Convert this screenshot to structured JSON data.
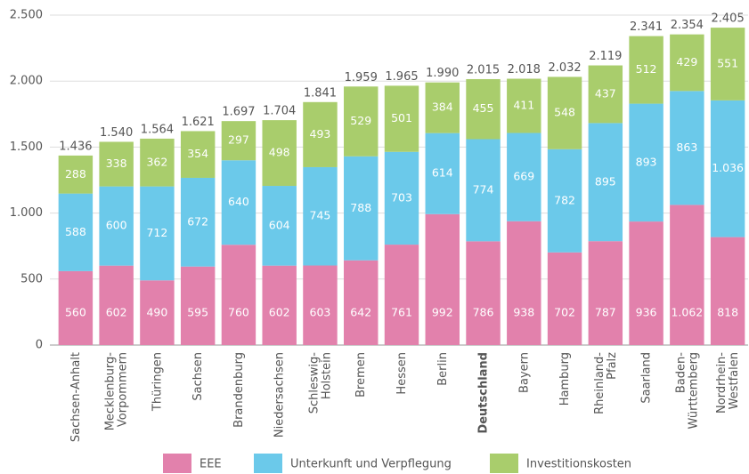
{
  "chart_data": {
    "type": "stacked_bar",
    "categories": [
      "Sachsen-Anhalt",
      "Mecklenburg-\nVorpommern",
      "Thüringen",
      "Sachsen",
      "Brandenburg",
      "Niedersachsen",
      "Schleswig-\nHolstein",
      "Bremen",
      "Hessen",
      "Berlin",
      "Deutschland",
      "Bayern",
      "Hamburg",
      "Rheinland-\nPfalz",
      "Saarland",
      "Baden-\nWürttemberg",
      "Nordrhein-\nWestfalen"
    ],
    "highlight": "Deutschland",
    "series": [
      {
        "name": "EEE",
        "color": "#e281ac",
        "values": [
          560,
          602,
          490,
          595,
          760,
          602,
          603,
          642,
          761,
          992,
          786,
          938,
          702,
          787,
          936,
          1062,
          818
        ],
        "value_labels": [
          "560",
          "602",
          "490",
          "595",
          "760",
          "602",
          "603",
          "642",
          "761",
          "992",
          "786",
          "938",
          "702",
          "787",
          "936",
          "1.062",
          "818"
        ]
      },
      {
        "name": "Unterkunft und Verpflegung",
        "color": "#6bc9ea",
        "values": [
          588,
          600,
          712,
          672,
          640,
          604,
          745,
          788,
          703,
          614,
          774,
          669,
          782,
          895,
          893,
          863,
          1036
        ],
        "value_labels": [
          "588",
          "600",
          "712",
          "672",
          "640",
          "604",
          "745",
          "788",
          "703",
          "614",
          "774",
          "669",
          "782",
          "895",
          "893",
          "863",
          "1.036"
        ]
      },
      {
        "name": "Investitionskosten",
        "color": "#a9cd6c",
        "values": [
          288,
          338,
          362,
          354,
          297,
          498,
          493,
          529,
          501,
          384,
          455,
          411,
          548,
          437,
          512,
          429,
          551
        ],
        "value_labels": [
          "288",
          "338",
          "362",
          "354",
          "297",
          "498",
          "493",
          "529",
          "501",
          "384",
          "455",
          "411",
          "548",
          "437",
          "512",
          "429",
          "551"
        ]
      }
    ],
    "totals": {
      "values": [
        1436,
        1540,
        1564,
        1621,
        1697,
        1704,
        1841,
        1959,
        1965,
        1990,
        2015,
        2018,
        2032,
        2119,
        2341,
        2354,
        2405
      ],
      "value_labels": [
        "1.436",
        "1.540",
        "1.564",
        "1.621",
        "1.697",
        "1.704",
        "1.841",
        "1.959",
        "1.965",
        "1.990",
        "2.015",
        "2.018",
        "2.032",
        "2.119",
        "2.341",
        "2.354",
        "2.405"
      ]
    },
    "ylim": [
      0,
      2500
    ],
    "yticks": [
      0,
      500,
      {
        "value": 1000,
        "label": "1.000"
      },
      {
        "value": 1500,
        "label": "1.500"
      },
      {
        "value": 2000,
        "label": "2.000"
      },
      {
        "value": 2500,
        "label": "2.500"
      }
    ],
    "grid": true,
    "legend": "bottom"
  }
}
